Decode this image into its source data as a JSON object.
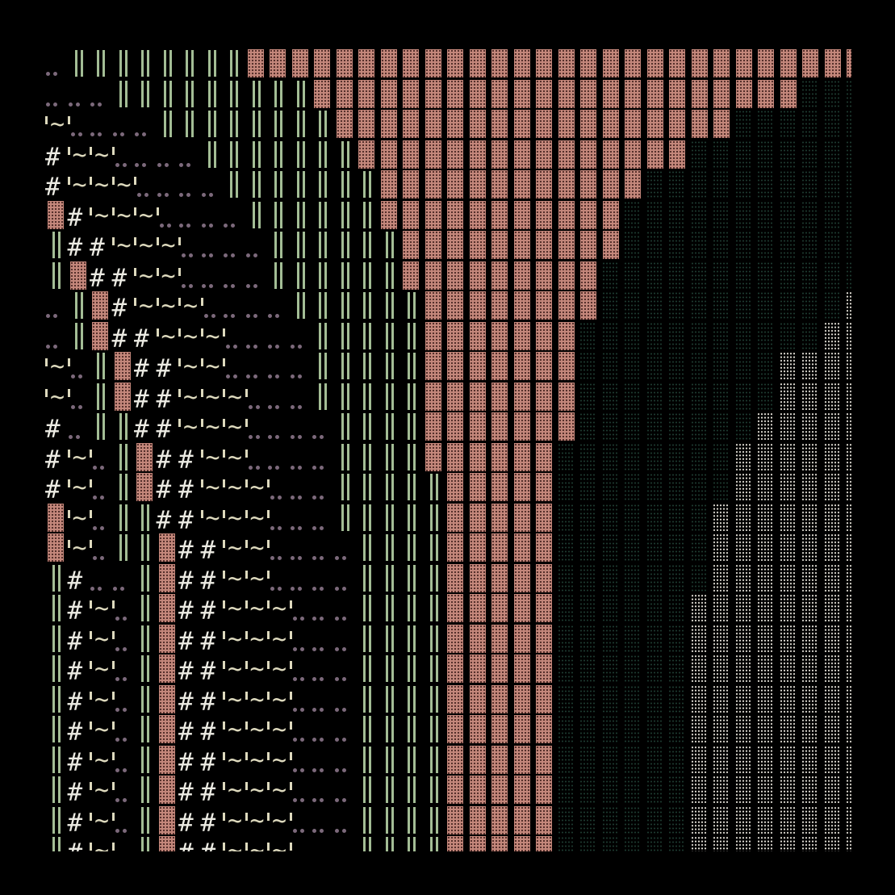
{
  "art": {
    "colors": {
      "background": "#000000",
      "dense_block": "#c4877b",
      "double_bar": "#a3bd95",
      "dark_shade": "#1d3a30",
      "light_shade": "#e2dfd6",
      "dots": "#7c697b",
      "hash": "#ecebe3",
      "tilde": "#ddd9bd"
    },
    "rows": [
      "‥║║║║║║║║▓▓▓▓▓▓▓▓▓▓▓▓▓▓▓▓▓▓▓▓▓▓▓▓▓▓▓▓",
      "‥‥‥║║║║║║║║║▓▓▓▓▓▓▓▓▓▓▓▓▓▓▓▓▓▓▓▓▓▓▒▒▒",
      "~'‥‥‥║║║║║║║║▓▓▓▓▓▓▓▓▓▓▓▓▓▓▓▓▓▓▒▒▒▒▒▒",
      "#~~'‥‥‥║║║║║║║▓▓▓▓▓▓▓▓▓▓▓▓▓▓▓▒▒▒▒▒▒▒▒",
      "#~~~'‥‥‥║║║║║║║▓▓▓▓▓▓▓▓▓▓▓▓▒▒▒▒▒▒▒▒▒▒",
      "▓#~~~'‥‥‥║║║║║║▓▓▓▓▓▓▓▓▓▓▓▒▒▒▒▒▒▒▒▒▒▒",
      "║##~~~'‥‥‥║║║║║║▓▓▓▓▓▓▓▓▓▓▒▒▒▒▒▒▒▒▒▒▒",
      "║▓##~~'‥‥‥║║║║║║▓▓▓▓▓▓▓▓▓▒▒▒▒▒▒▒▒▒▒▒▒",
      "‥║▓#~~~'‥‥‥║║║║║║▓▓▓▓▓▓▓▓▒▒▒▒▒▒▒▒▒▒▒░",
      "‥║▓##~~~'‥‥‥║║║║║▓▓▓▓▓▓▓▒▒▒▒▒▒▒▒▒▒▒░░",
      "~'║▓##~~'‥‥‥║║║║║▓▓▓▓▓▓▓▒▒▒▒▒▒▒▒▒░░░░",
      "~'║▓##~~~'‥‥║║║║║▓▓▓▓▓▓▓▒▒▒▒▒▒▒▒▒░░░░",
      "#‥║║##~~~'‥‥‥║║║║▓▓▓▓▓▓▓▒▒▒▒▒▒▒▒░░░░░",
      "#~'║▓##~~'‥‥‥║║║║▓▓▓▓▓▓▒▒▒▒▒▒▒▒░░░░░░",
      "#~'║▓##~~~'‥‥║║║║║▓▓▓▓▓▒▒▒▒▒▒▒▒░░░░░░",
      "▓~'║║##~~~'‥‥║║║║║▓▓▓▓▓▒▒▒▒▒▒▒░░░░░░░",
      "▓~'║║▓##~~'‥‥‥║║║║▓▓▓▓▓▒▒▒▒▒▒▒░░░░░░░",
      "║#‥‥║▓##~~'‥‥‥║║║║▓▓▓▓▓▒▒▒▒▒▒▒░░░░░░░",
      "║#~'║▓##~~~'‥‥║║║║▓▓▓▓▓▒▒▒▒▒▒░░░░░░░░",
      "║#~'║▓##~~~'‥‥║║║║▓▓▓▓▓▒▒▒▒▒▒░░░░░░░░",
      "║#~'║▓##~~~'‥‥║║║║▓▓▓▓▓▒▒▒▒▒▒░░░░░░░░",
      "║#~'║▓##~~~'‥‥║║║║▓▓▓▓▓▒▒▒▒▒▒░░░░░░░░",
      "║#~'║▓##~~~'‥‥║║║║▓▓▓▓▓▒▒▒▒▒▒░░░░░░░░",
      "║#~'║▓##~~~'‥‥║║║║▓▓▓▓▓▒▒▒▒▒▒░░░░░░░░",
      "║#~'║▓##~~~'‥‥║║║║▓▓▓▓▓▒▒▒▒▒▒░░░░░░░░",
      "║#~'║▓##~~~'‥‥║║║║▓▓▓▓▓▒▒▒▒▒▒░░░░░░░░",
      "║#~'║▓##~~~'‥‥║║║║▓▓▓▓▓▒▒▒▒▒▒░░░░░░░░"
    ]
  }
}
